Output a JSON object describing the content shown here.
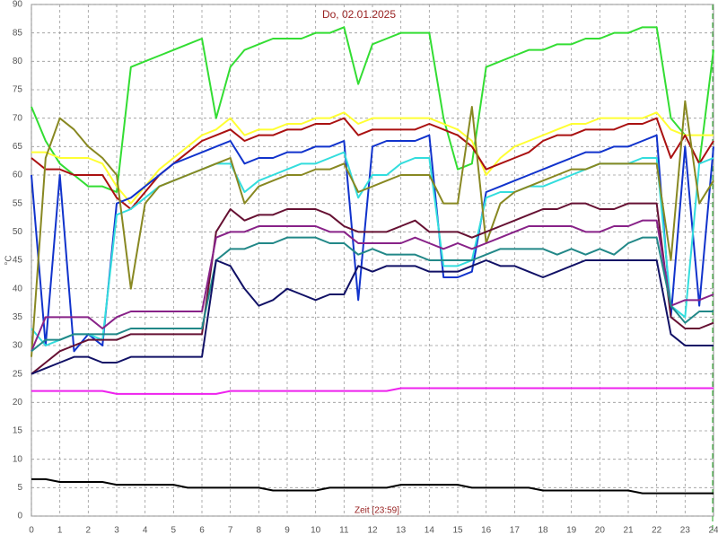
{
  "chart_data": {
    "type": "line",
    "title": "Do, 02.01.2025",
    "xlabel": "Zeit [23:59]",
    "ylabel": "°C",
    "x": [
      0,
      0.5,
      1,
      1.5,
      2,
      2.5,
      3,
      3.5,
      4,
      4.5,
      5,
      5.5,
      6,
      6.5,
      7,
      7.5,
      8,
      8.5,
      9,
      9.5,
      10,
      10.5,
      11,
      11.5,
      12,
      12.5,
      13,
      13.5,
      14,
      14.5,
      15,
      15.5,
      16,
      16.5,
      17,
      17.5,
      18,
      18.5,
      19,
      19.5,
      20,
      20.5,
      21,
      21.5,
      22,
      22.5,
      23,
      23.5,
      24
    ],
    "xlim": [
      0,
      24
    ],
    "xticks": [
      0,
      1,
      2,
      3,
      4,
      5,
      6,
      7,
      8,
      9,
      10,
      11,
      12,
      13,
      14,
      15,
      16,
      17,
      18,
      19,
      20,
      21,
      22,
      23,
      24
    ],
    "ylim": [
      0,
      90
    ],
    "yticks": [
      0,
      5,
      10,
      15,
      20,
      25,
      30,
      35,
      40,
      45,
      50,
      55,
      60,
      65,
      70,
      75,
      80,
      85,
      90
    ],
    "grid": true,
    "series": [
      {
        "color": "#33dd33",
        "values": [
          72,
          66,
          62,
          60,
          58,
          58,
          57,
          79,
          80,
          81,
          82,
          83,
          84,
          70,
          79,
          82,
          83,
          84,
          84,
          84,
          85,
          85,
          86,
          76,
          83,
          84,
          85,
          85,
          85,
          70,
          61,
          62,
          79,
          80,
          81,
          82,
          82,
          83,
          83,
          84,
          84,
          85,
          85,
          86,
          86,
          70,
          67,
          62,
          82
        ]
      },
      {
        "color": "#ffff33",
        "values": [
          64,
          64,
          63,
          63,
          63,
          62,
          58,
          55,
          58,
          61,
          63,
          65,
          67,
          68,
          70,
          67,
          68,
          68,
          69,
          69,
          70,
          70,
          71,
          69,
          70,
          70,
          70,
          70,
          70,
          69,
          68,
          66,
          60,
          63,
          65,
          66,
          67,
          68,
          69,
          69,
          70,
          70,
          70,
          70,
          71,
          68,
          67,
          67,
          67
        ]
      },
      {
        "color": "#aa1111",
        "values": [
          63,
          61,
          61,
          60,
          60,
          60,
          56,
          54,
          57,
          60,
          62,
          64,
          66,
          67,
          68,
          66,
          67,
          67,
          68,
          68,
          69,
          69,
          70,
          67,
          68,
          68,
          68,
          68,
          69,
          68,
          67,
          65,
          61,
          62,
          63,
          64,
          66,
          67,
          67,
          68,
          68,
          68,
          69,
          69,
          70,
          63,
          67,
          62,
          66
        ]
      },
      {
        "color": "#1133cc",
        "values": [
          60,
          30,
          60,
          29,
          32,
          30,
          55,
          56,
          58,
          60,
          62,
          63,
          64,
          65,
          66,
          62,
          63,
          63,
          64,
          64,
          65,
          65,
          66,
          38,
          65,
          66,
          66,
          66,
          67,
          42,
          42,
          43,
          57,
          58,
          59,
          60,
          61,
          62,
          63,
          64,
          64,
          65,
          65,
          66,
          67,
          35,
          65,
          37,
          65
        ]
      },
      {
        "color": "#33dddd",
        "values": [
          33,
          30,
          31,
          32,
          32,
          31,
          53,
          54,
          56,
          58,
          59,
          60,
          61,
          62,
          62,
          57,
          59,
          60,
          61,
          62,
          62,
          63,
          64,
          56,
          60,
          60,
          62,
          63,
          63,
          44,
          44,
          45,
          56,
          57,
          57,
          58,
          58,
          59,
          60,
          61,
          62,
          62,
          62,
          63,
          63,
          37,
          35,
          62,
          63
        ]
      },
      {
        "color": "#888822",
        "values": [
          28,
          63,
          70,
          68,
          65,
          63,
          60,
          40,
          55,
          58,
          59,
          60,
          61,
          62,
          63,
          55,
          58,
          59,
          60,
          60,
          61,
          61,
          62,
          57,
          58,
          59,
          60,
          60,
          60,
          55,
          55,
          72,
          48,
          55,
          57,
          58,
          59,
          60,
          61,
          61,
          62,
          62,
          62,
          62,
          62,
          45,
          73,
          55,
          59
        ]
      },
      {
        "color": "#661133",
        "values": [
          25,
          27,
          29,
          30,
          31,
          31,
          31,
          32,
          32,
          32,
          32,
          32,
          32,
          50,
          54,
          52,
          53,
          53,
          54,
          54,
          54,
          53,
          51,
          50,
          50,
          50,
          51,
          52,
          50,
          50,
          50,
          49,
          50,
          51,
          52,
          53,
          54,
          54,
          55,
          55,
          54,
          54,
          55,
          55,
          55,
          35,
          33,
          33,
          34
        ]
      },
      {
        "color": "#882288",
        "values": [
          29,
          35,
          35,
          35,
          35,
          33,
          35,
          36,
          36,
          36,
          36,
          36,
          36,
          49,
          50,
          50,
          51,
          51,
          51,
          51,
          51,
          50,
          50,
          48,
          48,
          48,
          48,
          49,
          48,
          47,
          48,
          47,
          48,
          49,
          50,
          51,
          51,
          51,
          51,
          50,
          50,
          51,
          51,
          52,
          52,
          37,
          38,
          38,
          39
        ]
      },
      {
        "color": "#228888",
        "values": [
          29,
          31,
          31,
          32,
          32,
          32,
          32,
          33,
          33,
          33,
          33,
          33,
          33,
          45,
          47,
          47,
          48,
          48,
          49,
          49,
          49,
          48,
          48,
          46,
          47,
          46,
          46,
          46,
          45,
          45,
          45,
          45,
          46,
          47,
          47,
          47,
          47,
          46,
          47,
          46,
          47,
          46,
          48,
          49,
          49,
          37,
          34,
          36,
          36
        ]
      },
      {
        "color": "#111166",
        "values": [
          25,
          26,
          27,
          28,
          28,
          27,
          27,
          28,
          28,
          28,
          28,
          28,
          28,
          45,
          44,
          40,
          37,
          38,
          40,
          39,
          38,
          39,
          39,
          44,
          43,
          44,
          44,
          44,
          43,
          43,
          43,
          44,
          45,
          44,
          44,
          43,
          42,
          43,
          44,
          45,
          45,
          45,
          45,
          45,
          45,
          32,
          30,
          30,
          30
        ]
      },
      {
        "color": "#ee22ee",
        "values": [
          22,
          22,
          22,
          22,
          22,
          22,
          21.5,
          21.5,
          21.5,
          21.5,
          21.5,
          21.5,
          21.5,
          21.5,
          22,
          22,
          22,
          22,
          22,
          22,
          22,
          22,
          22,
          22,
          22,
          22,
          22.5,
          22.5,
          22.5,
          22.5,
          22.5,
          22.5,
          22.5,
          22.5,
          22.5,
          22.5,
          22.5,
          22.5,
          22.5,
          22.5,
          22.5,
          22.5,
          22.5,
          22.5,
          22.5,
          22.5,
          22.5,
          22.5,
          22.5
        ]
      },
      {
        "color": "#000000",
        "values": [
          6.5,
          6.5,
          6,
          6,
          6,
          6,
          5.5,
          5.5,
          5.5,
          5.5,
          5.5,
          5,
          5,
          5,
          5,
          5,
          5,
          4.5,
          4.5,
          4.5,
          4.5,
          5,
          5,
          5,
          5,
          5,
          5.5,
          5.5,
          5.5,
          5.5,
          5.5,
          5,
          5,
          5,
          5,
          5,
          4.5,
          4.5,
          4.5,
          4.5,
          4.5,
          4.5,
          4.5,
          4,
          4,
          4,
          4,
          4,
          4
        ]
      }
    ]
  }
}
